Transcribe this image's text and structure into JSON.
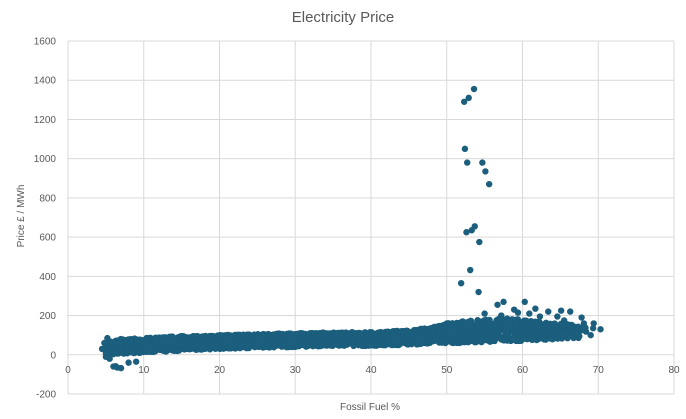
{
  "chart_data": {
    "type": "scatter",
    "title": "Electricity Price",
    "xlabel": "Fossil Fuel %",
    "ylabel": "Price £ / MWh",
    "xlim": [
      0,
      80
    ],
    "ylim": [
      -200,
      1600
    ],
    "x_ticks": [
      0,
      10,
      20,
      30,
      40,
      50,
      60,
      70,
      80
    ],
    "y_ticks": [
      -200,
      0,
      200,
      400,
      600,
      800,
      1000,
      1200,
      1400,
      1600
    ],
    "grid": true,
    "legend": "none",
    "marker_color": "#1b5e7d",
    "points": [
      [
        52.3,
        1290
      ],
      [
        52.9,
        1310
      ],
      [
        53.6,
        1355
      ],
      [
        52.4,
        1050
      ],
      [
        52.7,
        980
      ],
      [
        54.7,
        980
      ],
      [
        55.1,
        935
      ],
      [
        55.6,
        870
      ],
      [
        52.6,
        625
      ],
      [
        53.3,
        635
      ],
      [
        53.7,
        655
      ],
      [
        54.3,
        575
      ],
      [
        53.1,
        432
      ],
      [
        51.9,
        365
      ],
      [
        54.2,
        320
      ],
      [
        56.7,
        255
      ],
      [
        57.5,
        270
      ],
      [
        60.3,
        270
      ],
      [
        63.4,
        220
      ],
      [
        65.1,
        225
      ],
      [
        66.3,
        220
      ],
      [
        67.8,
        190
      ],
      [
        69.4,
        160
      ],
      [
        55.0,
        210
      ],
      [
        58.9,
        230
      ],
      [
        61.7,
        235
      ],
      [
        62.3,
        195
      ],
      [
        64.6,
        195
      ],
      [
        57.2,
        200
      ],
      [
        59.4,
        215
      ],
      [
        60.9,
        210
      ],
      [
        65.5,
        175
      ],
      [
        68.1,
        160
      ],
      [
        6.0,
        -60
      ],
      [
        6.5,
        -65
      ],
      [
        7.0,
        -68
      ],
      [
        6.3,
        -58
      ],
      [
        8.0,
        -40
      ],
      [
        9.0,
        -35
      ],
      [
        70.3,
        130
      ],
      [
        69.0,
        100
      ],
      [
        67.5,
        95
      ],
      [
        64.3,
        110
      ],
      [
        66.2,
        105
      ],
      [
        4.5,
        30
      ],
      [
        4.8,
        60
      ],
      [
        5.0,
        10
      ],
      [
        5.2,
        85
      ],
      [
        5.5,
        -20
      ],
      [
        5.0,
        -10
      ]
    ],
    "band": [
      [
        5,
        20,
        60
      ],
      [
        7,
        25,
        70
      ],
      [
        10,
        30,
        75
      ],
      [
        12,
        35,
        80
      ],
      [
        15,
        40,
        85
      ],
      [
        20,
        50,
        90
      ],
      [
        25,
        55,
        95
      ],
      [
        30,
        60,
        100
      ],
      [
        35,
        65,
        105
      ],
      [
        40,
        65,
        105
      ],
      [
        45,
        70,
        115
      ],
      [
        48,
        75,
        130
      ],
      [
        50,
        80,
        150
      ],
      [
        52,
        80,
        160
      ],
      [
        55,
        85,
        170
      ],
      [
        58,
        90,
        175
      ],
      [
        60,
        90,
        170
      ],
      [
        62,
        95,
        160
      ],
      [
        65,
        100,
        150
      ],
      [
        68,
        105,
        140
      ],
      [
        70,
        110,
        135
      ]
    ]
  }
}
